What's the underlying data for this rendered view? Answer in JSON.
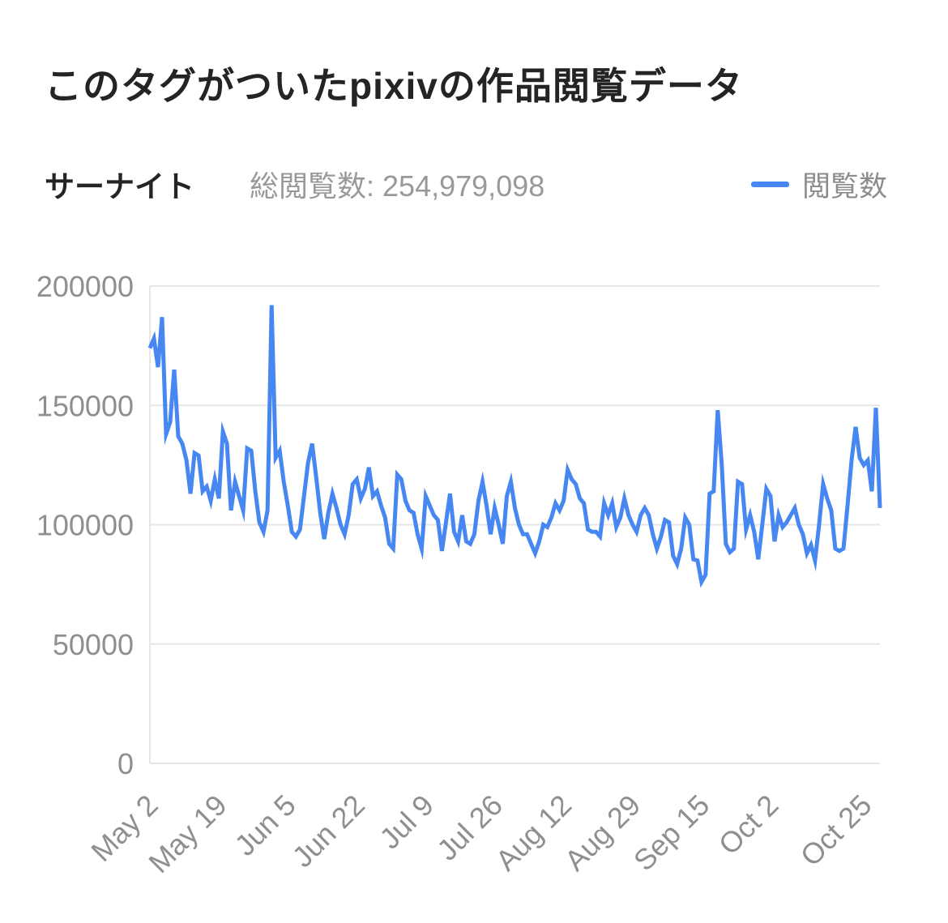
{
  "header": {
    "title": "このタグがついたpixivの作品閲覧データ"
  },
  "subheader": {
    "tag_name": "サーナイト",
    "total_views_label": "総閲覧数:",
    "total_views_value": "254,979,098",
    "legend_label": "閲覧数"
  },
  "colors": {
    "line": "#4787F1",
    "grid": "#e6e6e6",
    "axis_text": "#8f8f8f",
    "title_text": "#242424",
    "subtitle_text": "#999999",
    "background": "#ffffff"
  },
  "chart_data": {
    "type": "line",
    "title": "このタグがついたpixivの作品閲覧データ",
    "xlabel": "",
    "ylabel": "",
    "ylim": [
      0,
      200000
    ],
    "yticks": [
      0,
      50000,
      100000,
      150000,
      200000
    ],
    "grid": true,
    "legend_position": "top-right",
    "xticks": [
      {
        "day": 0,
        "label": "May 2"
      },
      {
        "day": 17,
        "label": "May 19"
      },
      {
        "day": 34,
        "label": "Jun 5"
      },
      {
        "day": 51,
        "label": "Jun 22"
      },
      {
        "day": 68,
        "label": "Jul 9"
      },
      {
        "day": 85,
        "label": "Jul 26"
      },
      {
        "day": 102,
        "label": "Aug 12"
      },
      {
        "day": 119,
        "label": "Aug 29"
      },
      {
        "day": 136,
        "label": "Sep 15"
      },
      {
        "day": 153,
        "label": "Oct 2"
      },
      {
        "day": 176,
        "label": "Oct 25"
      }
    ],
    "series": [
      {
        "name": "閲覧数",
        "color": "#4787F1",
        "values": [
          174000,
          178000,
          166000,
          187000,
          138000,
          143000,
          165000,
          137000,
          134000,
          127000,
          113000,
          130000,
          129000,
          114000,
          116000,
          110000,
          119000,
          111000,
          139000,
          134000,
          106000,
          118000,
          112000,
          106000,
          132000,
          131000,
          114000,
          101000,
          97000,
          106000,
          192000,
          128000,
          131000,
          118000,
          108000,
          97000,
          95000,
          98000,
          112000,
          126000,
          134000,
          120000,
          105000,
          94000,
          105000,
          113000,
          107000,
          100000,
          96000,
          104000,
          117000,
          119000,
          111000,
          115000,
          124000,
          112000,
          114000,
          108000,
          103000,
          92000,
          90000,
          121000,
          119000,
          110000,
          106000,
          105000,
          96000,
          90000,
          112000,
          108000,
          104000,
          102000,
          89000,
          101000,
          113000,
          97000,
          93000,
          104000,
          93000,
          92000,
          96000,
          110000,
          118000,
          108000,
          96000,
          107000,
          100000,
          92000,
          112000,
          118000,
          107000,
          100000,
          96000,
          96000,
          92000,
          88000,
          93000,
          100000,
          99000,
          103000,
          109000,
          106000,
          110000,
          123000,
          119000,
          117000,
          111000,
          109000,
          98000,
          97000,
          97000,
          95000,
          109000,
          104000,
          109000,
          99000,
          103000,
          111000,
          104000,
          100000,
          97000,
          104000,
          107000,
          104000,
          96000,
          90000,
          95000,
          102000,
          101000,
          87000,
          83500,
          90000,
          103000,
          100000,
          85500,
          85000,
          76000,
          79000,
          113000,
          114000,
          148000,
          125000,
          92000,
          88500,
          90000,
          118000,
          117000,
          98000,
          104000,
          97000,
          85500,
          100000,
          115000,
          112000,
          93000,
          104000,
          99000,
          101000,
          104000,
          107000,
          100000,
          96000,
          88000,
          91500,
          85000,
          100000,
          117000,
          111000,
          106000,
          90000,
          89000,
          90000,
          108000,
          127000,
          141000,
          128000,
          125000,
          127000,
          114000,
          149000,
          107000
        ]
      }
    ]
  }
}
